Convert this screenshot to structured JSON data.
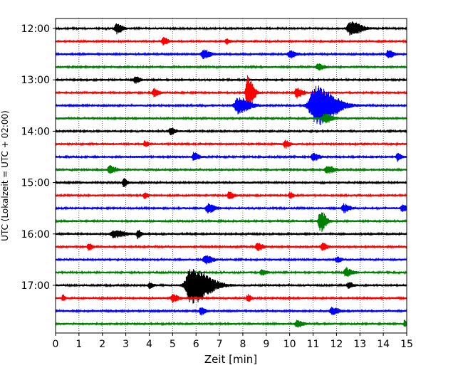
{
  "chart_data": {
    "type": "line",
    "xlabel": "Zeit  [min]",
    "ylabel": "UTC (Lokalzeit = UTC + 02:00)",
    "xlim": [
      0,
      15
    ],
    "x_ticks": [
      "0",
      "1",
      "2",
      "3",
      "4",
      "5",
      "6",
      "7",
      "8",
      "9",
      "10",
      "11",
      "12",
      "13",
      "14",
      "15"
    ],
    "y_ticks": [
      {
        "time": "12:00",
        "trace": 0
      },
      {
        "time": "13:00",
        "trace": 4
      },
      {
        "time": "14:00",
        "trace": 8
      },
      {
        "time": "15:00",
        "trace": 12
      },
      {
        "time": "16:00",
        "trace": 16
      },
      {
        "time": "17:00",
        "trace": 20
      }
    ],
    "grid": "vertical-dotted",
    "trace_colors": [
      "#000000",
      "#ff0000",
      "#0000ff",
      "#008000"
    ],
    "trace_interval_minutes": 15,
    "traces": [
      {
        "start": "12:00",
        "events": [
          {
            "t": 2.6,
            "amp": 7,
            "dur": 0.5
          },
          {
            "t": 12.6,
            "amp": 10,
            "dur": 0.9
          }
        ]
      },
      {
        "start": "12:15",
        "events": [
          {
            "t": 4.6,
            "amp": 5,
            "dur": 0.4
          },
          {
            "t": 7.3,
            "amp": 4,
            "dur": 0.3
          }
        ]
      },
      {
        "start": "12:30",
        "events": [
          {
            "t": 6.3,
            "amp": 6,
            "dur": 0.6
          },
          {
            "t": 10.0,
            "amp": 5,
            "dur": 0.5
          },
          {
            "t": 14.2,
            "amp": 5,
            "dur": 0.5
          }
        ]
      },
      {
        "start": "12:45",
        "events": [
          {
            "t": 11.2,
            "amp": 4,
            "dur": 0.5
          }
        ]
      },
      {
        "start": "13:00",
        "events": [
          {
            "t": 3.4,
            "amp": 5,
            "dur": 0.4
          }
        ]
      },
      {
        "start": "13:15",
        "events": [
          {
            "t": 4.2,
            "amp": 6,
            "dur": 0.4
          },
          {
            "t": 8.2,
            "amp": 24,
            "dur": 0.5
          },
          {
            "t": 10.3,
            "amp": 7,
            "dur": 0.5
          }
        ]
      },
      {
        "start": "13:30",
        "events": [
          {
            "t": 7.8,
            "amp": 11,
            "dur": 1.0
          },
          {
            "t": 11.1,
            "amp": 28,
            "dur": 1.7
          }
        ]
      },
      {
        "start": "13:45",
        "events": [
          {
            "t": 11.5,
            "amp": 6,
            "dur": 0.7
          }
        ]
      },
      {
        "start": "14:00",
        "events": [
          {
            "t": 4.9,
            "amp": 5,
            "dur": 0.4
          }
        ]
      },
      {
        "start": "14:15",
        "events": [
          {
            "t": 9.8,
            "amp": 5,
            "dur": 0.4
          },
          {
            "t": 3.8,
            "amp": 4,
            "dur": 0.3
          }
        ]
      },
      {
        "start": "14:30",
        "events": [
          {
            "t": 5.9,
            "amp": 6,
            "dur": 0.4
          },
          {
            "t": 11.0,
            "amp": 5,
            "dur": 0.5
          },
          {
            "t": 14.6,
            "amp": 6,
            "dur": 0.3
          }
        ]
      },
      {
        "start": "14:45",
        "events": [
          {
            "t": 2.3,
            "amp": 6,
            "dur": 0.5
          },
          {
            "t": 11.6,
            "amp": 5,
            "dur": 0.6
          }
        ]
      },
      {
        "start": "15:00",
        "events": [
          {
            "t": 2.9,
            "amp": 6,
            "dur": 0.3
          }
        ]
      },
      {
        "start": "15:15",
        "events": [
          {
            "t": 7.4,
            "amp": 5,
            "dur": 0.4
          },
          {
            "t": 3.8,
            "amp": 4,
            "dur": 0.3
          },
          {
            "t": 10.0,
            "amp": 4,
            "dur": 0.3
          }
        ]
      },
      {
        "start": "15:30",
        "events": [
          {
            "t": 6.5,
            "amp": 6,
            "dur": 0.6
          },
          {
            "t": 12.3,
            "amp": 6,
            "dur": 0.5
          },
          {
            "t": 14.8,
            "amp": 5,
            "dur": 0.4
          }
        ]
      },
      {
        "start": "15:45",
        "events": [
          {
            "t": 11.3,
            "amp": 15,
            "dur": 0.5
          }
        ]
      },
      {
        "start": "16:00",
        "events": [
          {
            "t": 2.5,
            "amp": 5,
            "dur": 0.9
          },
          {
            "t": 3.5,
            "amp": 6,
            "dur": 0.3
          }
        ]
      },
      {
        "start": "16:15",
        "events": [
          {
            "t": 1.4,
            "amp": 6,
            "dur": 0.3
          },
          {
            "t": 8.6,
            "amp": 5,
            "dur": 0.5
          },
          {
            "t": 11.4,
            "amp": 5,
            "dur": 0.4
          }
        ]
      },
      {
        "start": "16:30",
        "events": [
          {
            "t": 6.4,
            "amp": 6,
            "dur": 0.6
          },
          {
            "t": 12.0,
            "amp": 4,
            "dur": 0.4
          }
        ]
      },
      {
        "start": "16:45",
        "events": [
          {
            "t": 12.4,
            "amp": 6,
            "dur": 0.5
          },
          {
            "t": 8.8,
            "amp": 4,
            "dur": 0.4
          }
        ]
      },
      {
        "start": "17:00",
        "events": [
          {
            "t": 5.8,
            "amp": 26,
            "dur": 1.6
          },
          {
            "t": 4.0,
            "amp": 4,
            "dur": 0.3
          },
          {
            "t": 12.5,
            "amp": 4,
            "dur": 0.4
          }
        ]
      },
      {
        "start": "17:15",
        "events": [
          {
            "t": 0.3,
            "amp": 5,
            "dur": 0.2
          },
          {
            "t": 5.0,
            "amp": 5,
            "dur": 0.5
          },
          {
            "t": 8.2,
            "amp": 5,
            "dur": 0.3
          }
        ]
      },
      {
        "start": "17:30",
        "events": [
          {
            "t": 6.2,
            "amp": 5,
            "dur": 0.4
          },
          {
            "t": 11.8,
            "amp": 5,
            "dur": 0.6
          }
        ]
      },
      {
        "start": "17:45",
        "events": [
          {
            "t": 10.3,
            "amp": 5,
            "dur": 0.5
          },
          {
            "t": 14.9,
            "amp": 5,
            "dur": 0.2
          }
        ]
      }
    ]
  }
}
